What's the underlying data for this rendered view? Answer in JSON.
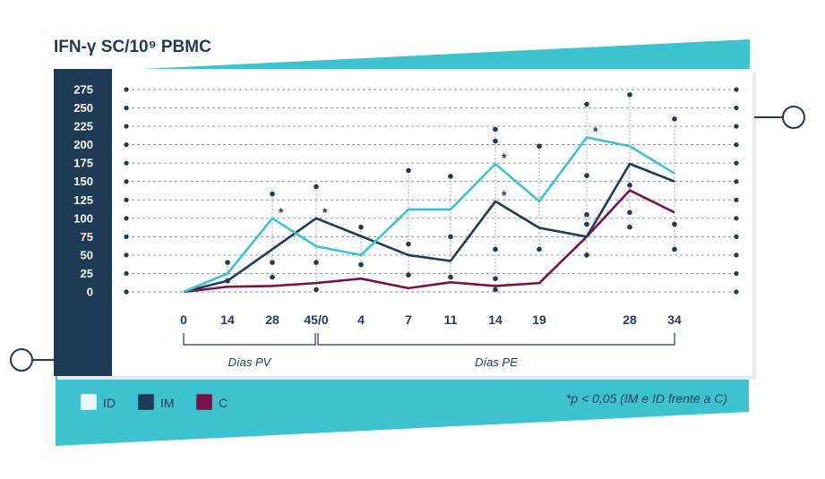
{
  "chart_data": {
    "type": "line",
    "title": "IFN-γ SC/10⁹ PBMC",
    "ylim": [
      0,
      275
    ],
    "yticks": [
      0,
      25,
      50,
      75,
      100,
      125,
      150,
      175,
      200,
      225,
      250,
      275
    ],
    "grid": true,
    "categories": [
      "0",
      "14",
      "28",
      "45/0",
      "4",
      "7",
      "11",
      "14",
      "19",
      "",
      "28",
      "34"
    ],
    "phases": [
      {
        "label": "Días PV",
        "from": 0,
        "to": 3
      },
      {
        "label": "Días PE",
        "from": 3,
        "to": 11
      }
    ],
    "series": [
      {
        "name": "ID",
        "color": "#3cc3cf",
        "values": [
          0,
          25,
          100,
          62,
          50,
          112,
          112,
          174,
          123,
          210,
          198,
          161
        ]
      },
      {
        "name": "IM",
        "color": "#1f3a55",
        "values": [
          0,
          15,
          null,
          100,
          null,
          50,
          42,
          123,
          87,
          75,
          174,
          150
        ]
      },
      {
        "name": "C",
        "color": "#7b1049",
        "values": [
          0,
          7,
          8,
          12,
          18,
          5,
          13,
          8,
          12,
          75,
          138,
          108
        ]
      }
    ],
    "error_bars": [
      {
        "idx": 1,
        "low": 15,
        "high": 40
      },
      {
        "idx": 2,
        "low": 40,
        "high": 133
      },
      {
        "idx": 3,
        "low": 3,
        "high": 143
      },
      {
        "idx": 4,
        "low": 37,
        "high": 88
      },
      {
        "idx": 5,
        "low": 23,
        "high": 165
      },
      {
        "idx": 6,
        "low": 20,
        "high": 157
      },
      {
        "idx": 7,
        "low": 3,
        "high": 221
      },
      {
        "idx": 8,
        "low": 58,
        "high": 198
      },
      {
        "idx": 9,
        "low": 50,
        "high": 255
      },
      {
        "idx": 10,
        "low": 88,
        "high": 268
      },
      {
        "idx": 11,
        "low": 58,
        "high": 235
      }
    ],
    "extra_points": [
      {
        "idx": 2,
        "value": 20
      },
      {
        "idx": 3,
        "value": 40
      },
      {
        "idx": 5,
        "value": 65
      },
      {
        "idx": 6,
        "value": 75
      },
      {
        "idx": 7,
        "value": 58
      },
      {
        "idx": 7,
        "value": 18
      },
      {
        "idx": 7,
        "value": 205
      },
      {
        "idx": 9,
        "value": 105
      },
      {
        "idx": 9,
        "value": 92
      },
      {
        "idx": 9,
        "value": 158
      },
      {
        "idx": 10,
        "value": 108
      },
      {
        "idx": 10,
        "value": 145
      },
      {
        "idx": 11,
        "value": 92
      }
    ],
    "annotations": [
      {
        "text": "*",
        "idx": 2,
        "value": 100
      },
      {
        "text": "*",
        "idx": 3,
        "value": 100
      },
      {
        "text": "*",
        "idx": 7,
        "value": 174
      },
      {
        "text": "*",
        "idx": 7,
        "value": 123
      },
      {
        "text": "*",
        "idx": 9,
        "value": 210
      }
    ],
    "legend": {
      "placement": "bottom-left"
    },
    "footnote": "*p < 0,05 (IM e ID frente a C)"
  },
  "colors": {
    "navy": "#1f3a55",
    "teal": "#3cc3cf",
    "magenta": "#7b1049",
    "grid": "#7f8fa0"
  }
}
